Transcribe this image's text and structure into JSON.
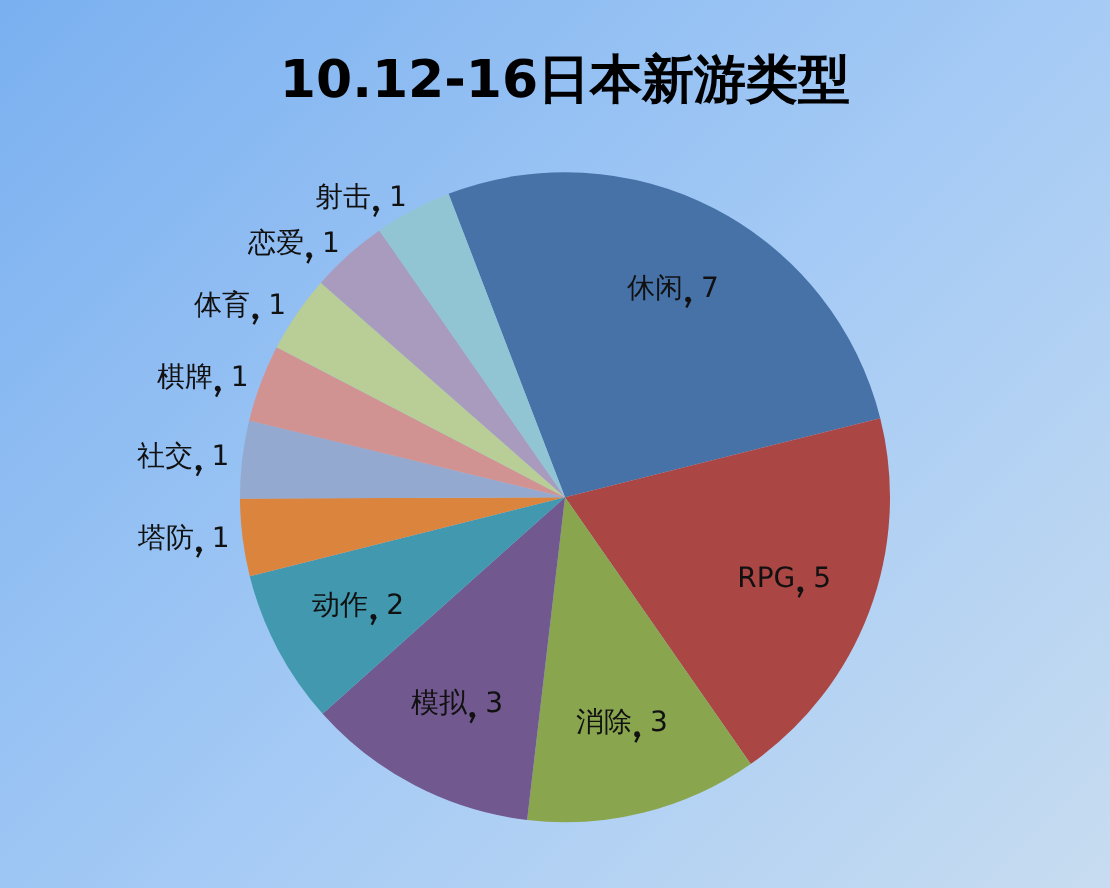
{
  "chart_data": {
    "type": "pie",
    "title": "10.12-16日本新游类型",
    "categories": [
      "休闲",
      "RPG",
      "消除",
      "模拟",
      "动作",
      "塔防",
      "社交",
      "棋牌",
      "体育",
      "恋爱",
      "射击"
    ],
    "values": [
      7,
      5,
      3,
      3,
      2,
      1,
      1,
      1,
      1,
      1,
      1
    ],
    "colors": [
      "#4672a8",
      "#aa4643",
      "#89a54e",
      "#71588f",
      "#4198af",
      "#db843d",
      "#93a9cf",
      "#d19392",
      "#b9cd96",
      "#a99bbd",
      "#92c5d3"
    ],
    "data_labels": true,
    "legend": false
  }
}
